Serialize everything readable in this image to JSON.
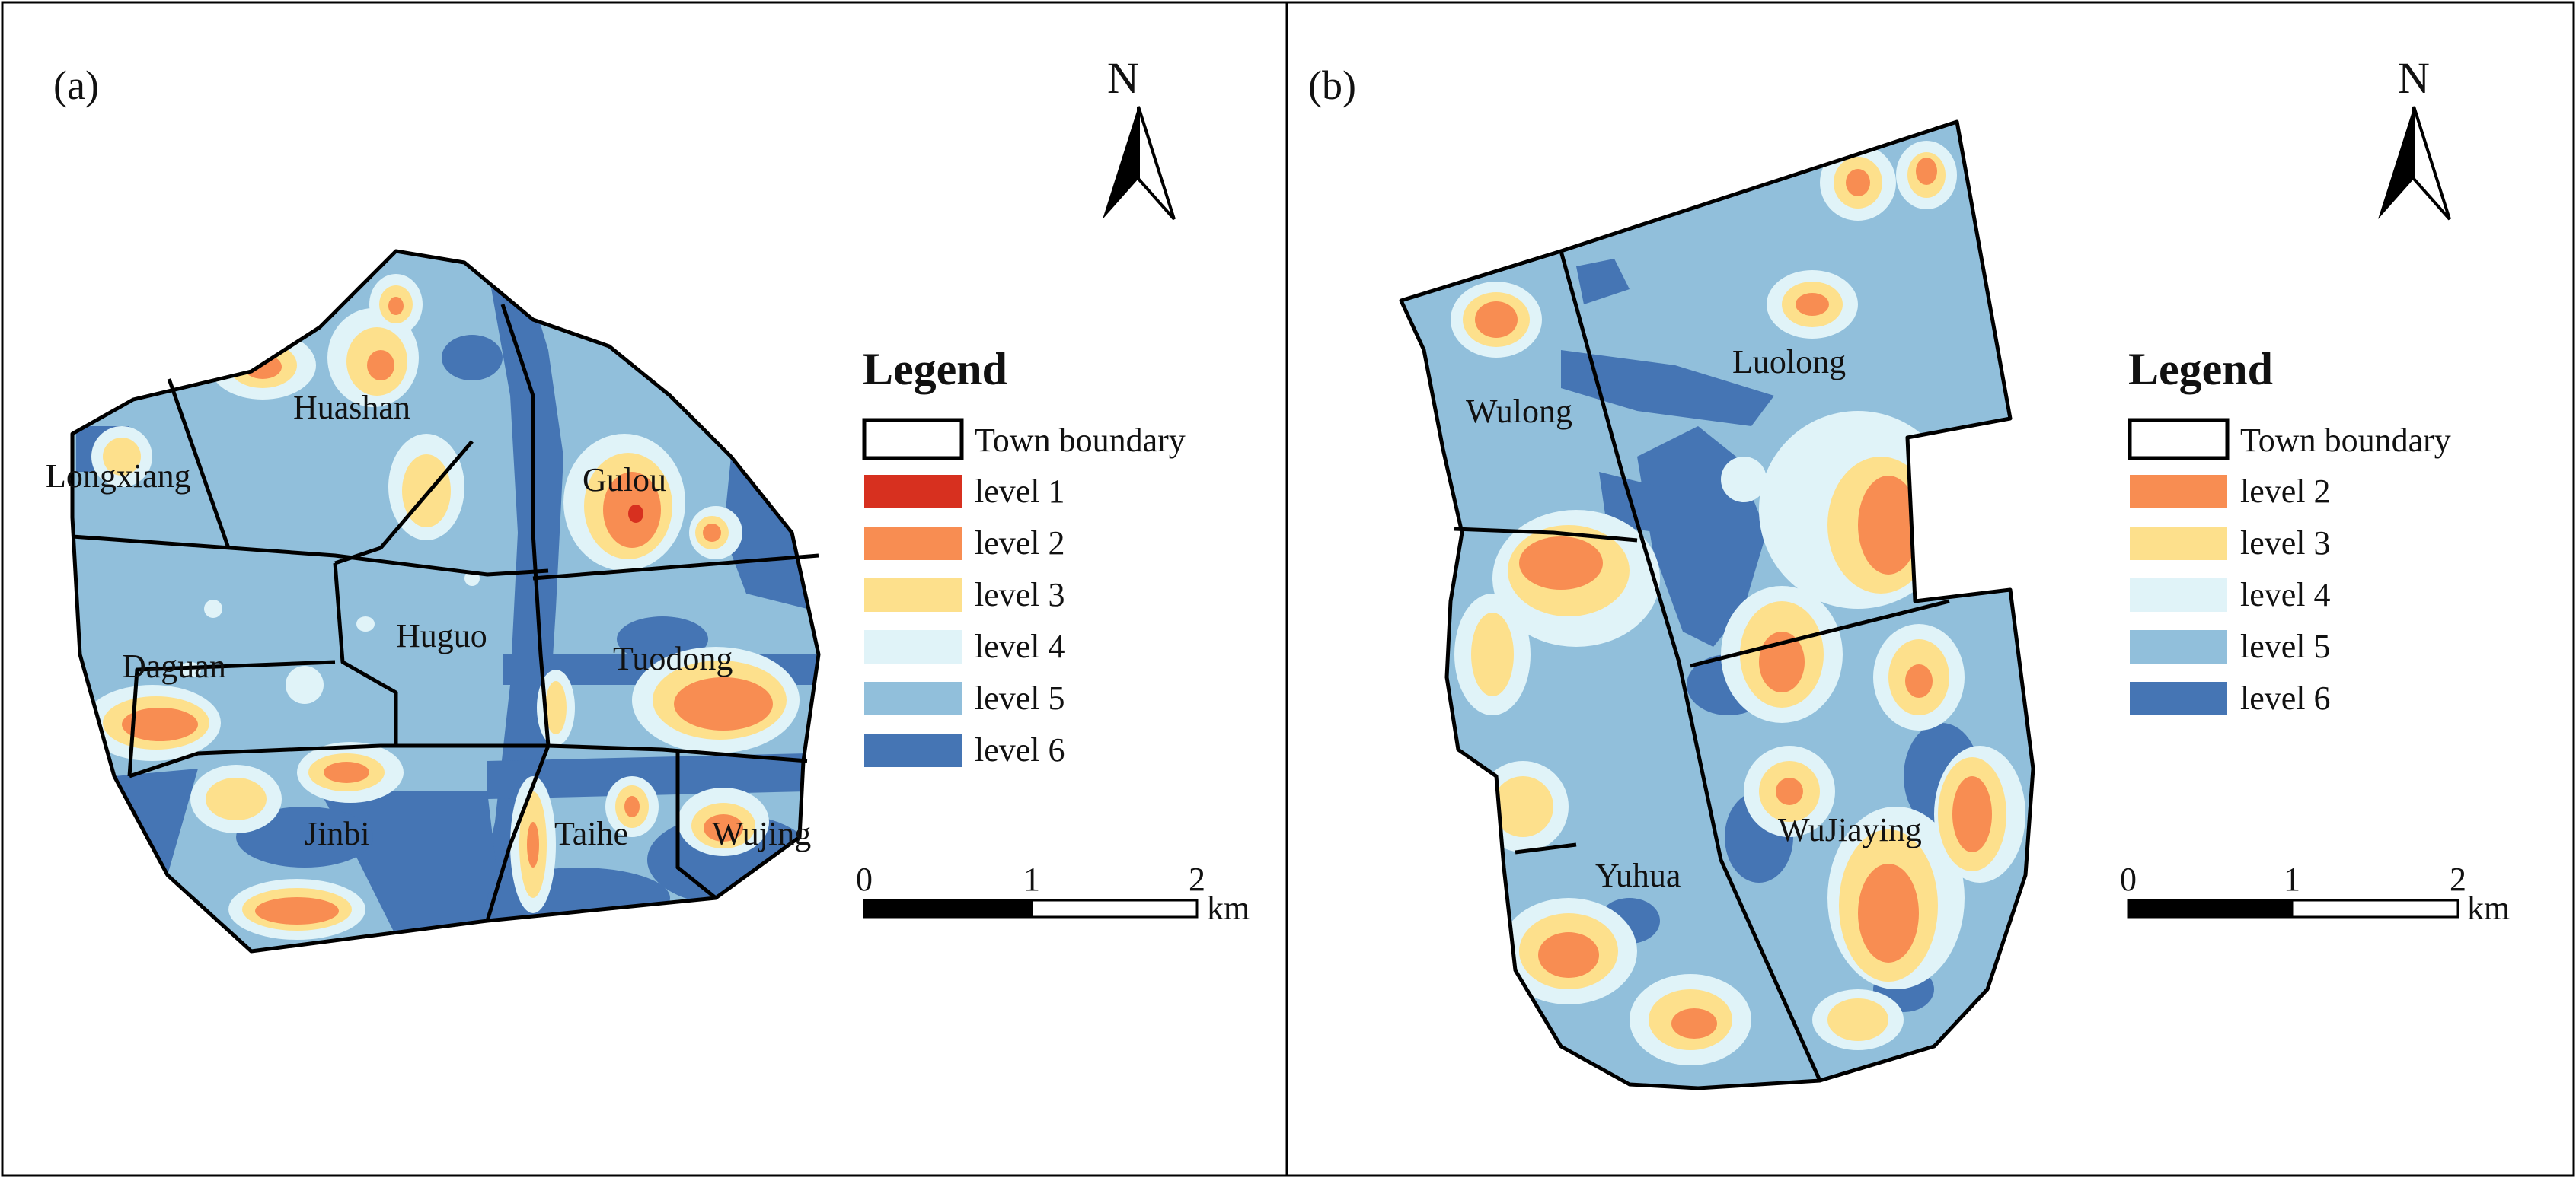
{
  "colors": {
    "level1": "#d7301f",
    "level2": "#f88d52",
    "level3": "#fde08c",
    "level4": "#e0f3f8",
    "level5": "#91bfdb",
    "level6": "#4575b4",
    "boundary": "#000000"
  },
  "panels": [
    {
      "label": "(a)",
      "north": "N",
      "legend": {
        "title": "Legend",
        "items": [
          {
            "label": "Town boundary",
            "key": "boundary"
          },
          {
            "label": "level 1",
            "key": "level1"
          },
          {
            "label": "level 2",
            "key": "level2"
          },
          {
            "label": "level 3",
            "key": "level3"
          },
          {
            "label": "level 4",
            "key": "level4"
          },
          {
            "label": "level 5",
            "key": "level5"
          },
          {
            "label": "level 6",
            "key": "level6"
          }
        ]
      },
      "scale": {
        "ticks": [
          "0",
          "1",
          "2"
        ],
        "unit": "km"
      },
      "towns": [
        "Huashan",
        "Longxiang",
        "Gulou",
        "Huguo",
        "Daguan",
        "Tuodong",
        "Jinbi",
        "Taihe",
        "Wujing"
      ]
    },
    {
      "label": "(b)",
      "north": "N",
      "legend": {
        "title": "Legend",
        "items": [
          {
            "label": "Town boundary",
            "key": "boundary"
          },
          {
            "label": "level 2",
            "key": "level2"
          },
          {
            "label": "level 3",
            "key": "level3"
          },
          {
            "label": "level 4",
            "key": "level4"
          },
          {
            "label": "level 5",
            "key": "level5"
          },
          {
            "label": "level 6",
            "key": "level6"
          }
        ]
      },
      "scale": {
        "ticks": [
          "0",
          "1",
          "2"
        ],
        "unit": "km"
      },
      "towns": [
        "Wulong",
        "Luolong",
        "Yuhua",
        "WuJiaying"
      ]
    }
  ]
}
